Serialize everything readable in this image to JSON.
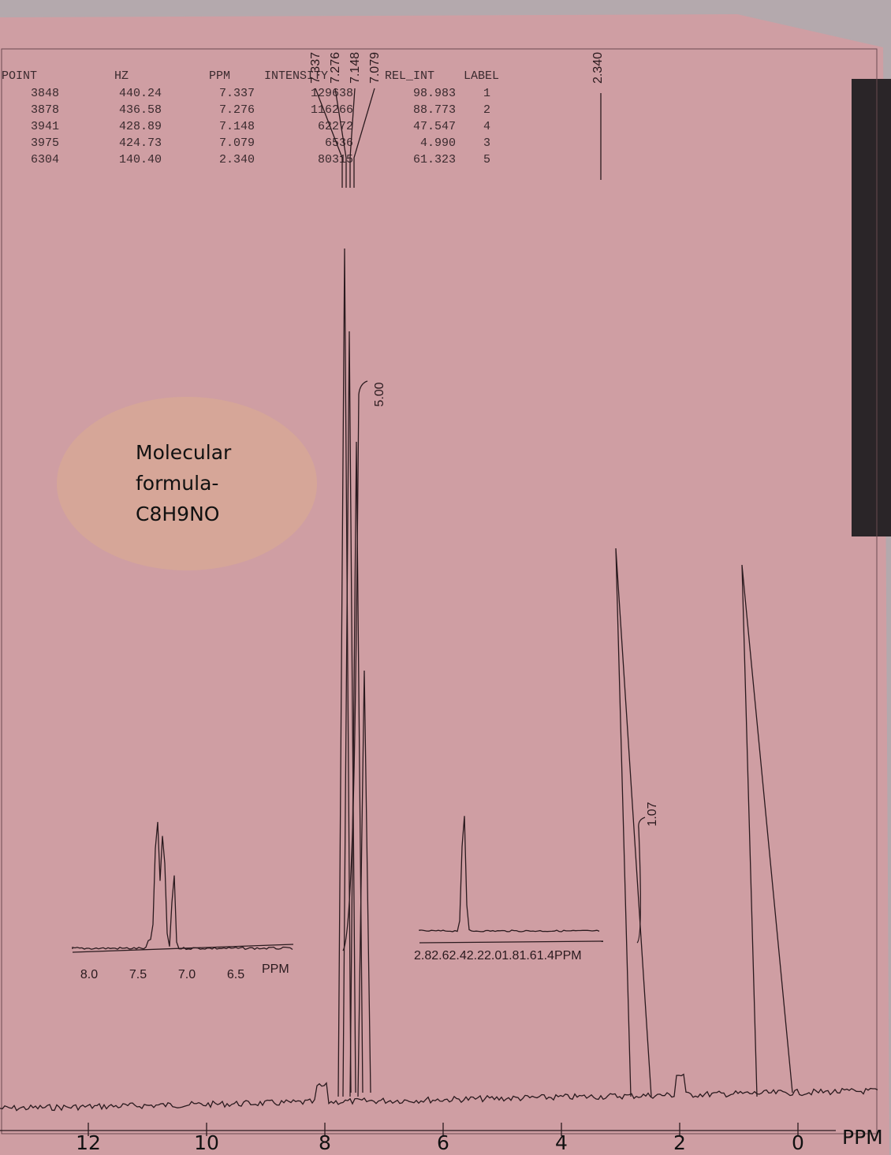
{
  "peak_table": {
    "headers": [
      "POINT",
      "HZ",
      "PPM",
      "INTENSITY",
      "REL_INT",
      "LABEL"
    ],
    "rows": [
      [
        "3848",
        "440.24",
        "7.337",
        "129638",
        "98.983",
        "1"
      ],
      [
        "3878",
        "436.58",
        "7.276",
        "116266",
        "88.773",
        "2"
      ],
      [
        "3941",
        "428.89",
        "7.148",
        "62272",
        "47.547",
        "4"
      ],
      [
        "3975",
        "424.73",
        "7.079",
        "6536",
        "4.990",
        "3"
      ],
      [
        "6304",
        "140.40",
        "2.340",
        "80315",
        "61.323",
        "5"
      ]
    ]
  },
  "peak_labels": [
    "7.337",
    "7.276",
    "7.148",
    "7.079",
    "2.340"
  ],
  "integrals": [
    "5.00",
    "1.07"
  ],
  "annotation": [
    "Molecular",
    "formula-",
    "C8H9NO"
  ],
  "main_axis": {
    "ticks": [
      "12",
      "10",
      "8",
      "6",
      "4",
      "2",
      "0"
    ],
    "unit": "PPM"
  },
  "inset_aromatic": {
    "ticks": [
      "8.0",
      "7.5",
      "7.0",
      "6.5"
    ],
    "unit": "PPM"
  },
  "inset_methyl": {
    "label": "2.82.62.42.22.01.81.61.4PPM"
  }
}
